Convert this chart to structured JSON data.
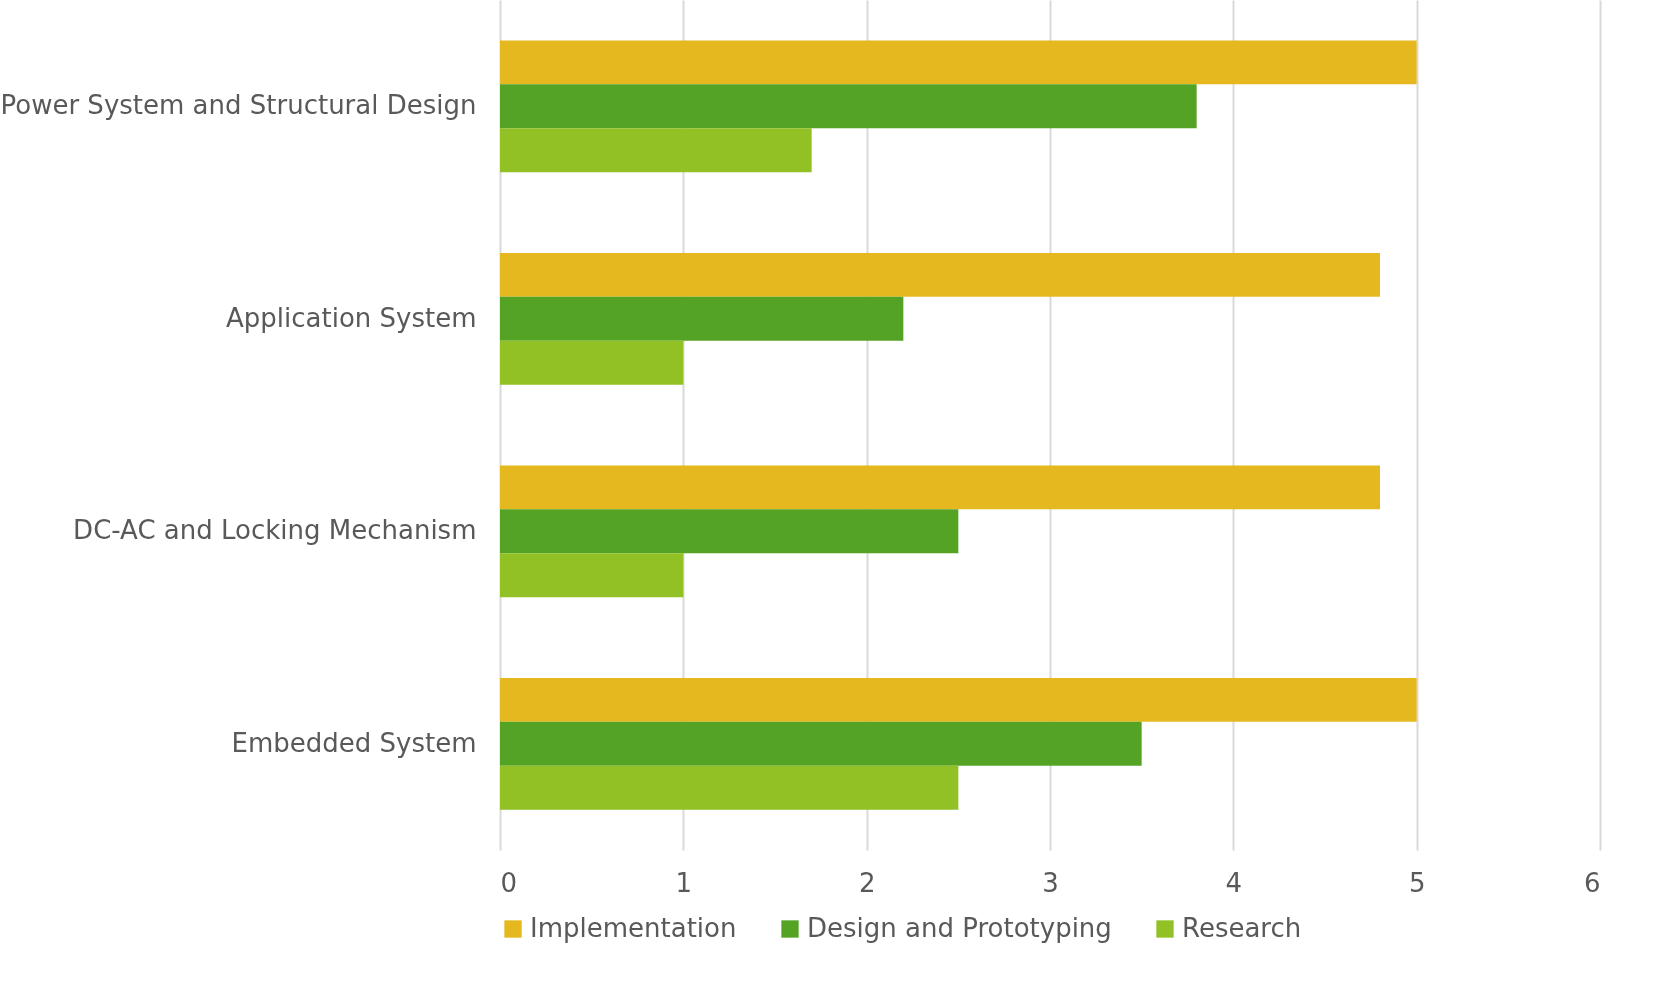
{
  "chart_data": {
    "type": "bar",
    "orientation": "horizontal",
    "categories": [
      "Power System and Structural Design",
      "Application System",
      "DC-AC  and Locking Mechanism",
      "Embedded System"
    ],
    "series": [
      {
        "name": "Implementation",
        "color": "#e4b81e",
        "values": [
          5.0,
          4.8,
          4.8,
          5.0
        ]
      },
      {
        "name": "Design and Prototyping",
        "color": "#55a324",
        "values": [
          3.8,
          2.2,
          2.5,
          3.5
        ]
      },
      {
        "name": "Research",
        "color": "#92c126",
        "values": [
          1.7,
          1.0,
          1.0,
          2.5
        ]
      }
    ],
    "xlim": [
      0,
      6
    ],
    "xticks": [
      0,
      1,
      2,
      3,
      4,
      5,
      6
    ],
    "grid": "x",
    "legend": "bottom"
  }
}
